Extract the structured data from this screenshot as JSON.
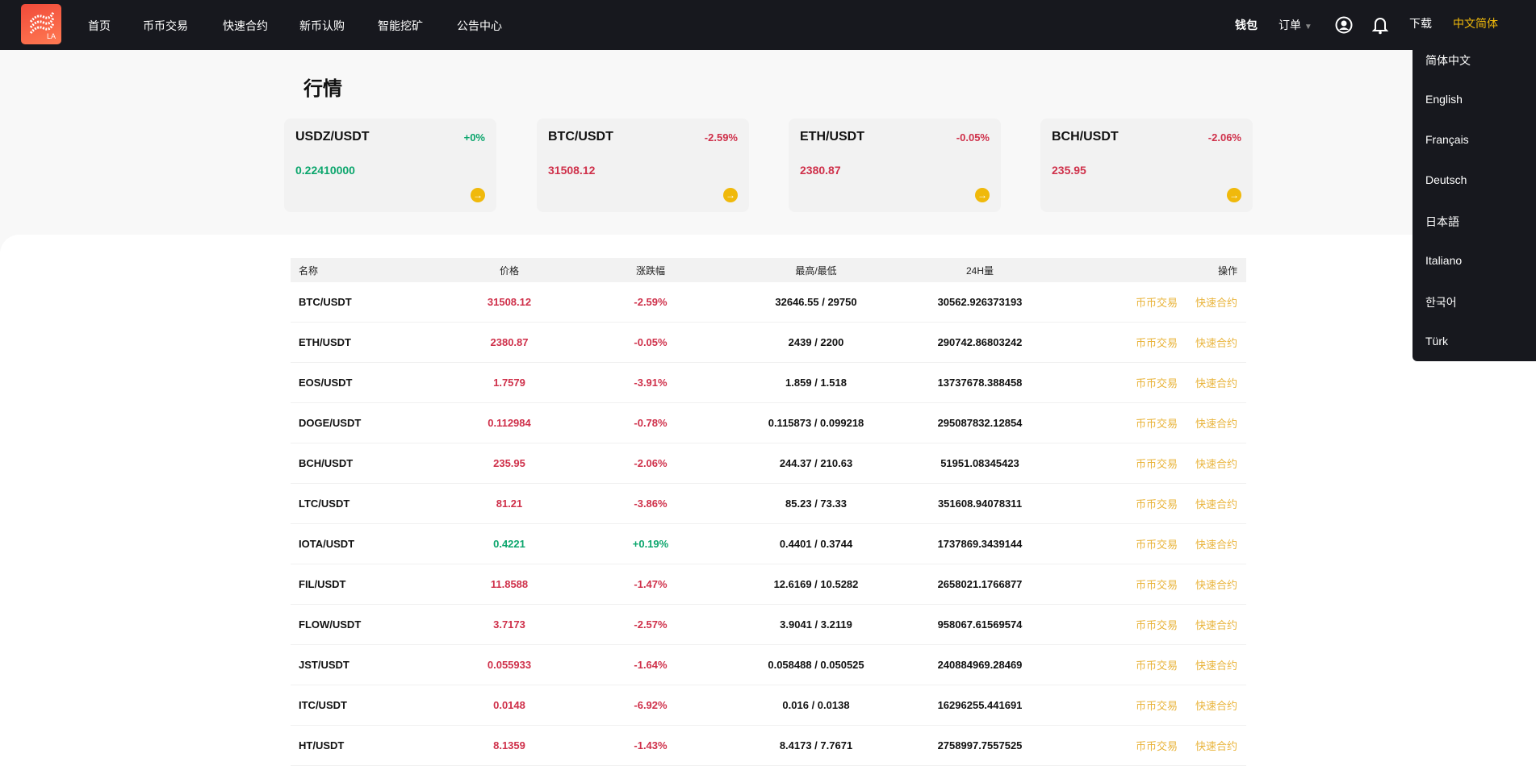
{
  "nav": {
    "logo_text": "LA",
    "items": [
      "首页",
      "币币交易",
      "快速合约",
      "新币认购",
      "智能挖矿",
      "公告中心"
    ],
    "wallet": "钱包",
    "orders": "订单",
    "download": "下载",
    "language": "中文简体"
  },
  "lang_menu": [
    "简体中文",
    "English",
    "Français",
    "Deutsch",
    "日本語",
    "Italiano",
    "한국어",
    "Türk"
  ],
  "page_title": "行情",
  "colors": {
    "up": "#0ca66d",
    "down": "#cf304a",
    "accent": "#f0b90b",
    "link": "#e9b43b",
    "nav_bg": "#17181e"
  },
  "cards": [
    {
      "pair": "USDZ/USDT",
      "change": "+0%",
      "price": "0.22410000",
      "trend": "up"
    },
    {
      "pair": "BTC/USDT",
      "change": "-2.59%",
      "price": "31508.12",
      "trend": "down"
    },
    {
      "pair": "ETH/USDT",
      "change": "-0.05%",
      "price": "2380.87",
      "trend": "down"
    },
    {
      "pair": "BCH/USDT",
      "change": "-2.06%",
      "price": "235.95",
      "trend": "down"
    }
  ],
  "table": {
    "headers": [
      "名称",
      "价格",
      "涨跌幅",
      "最高/最低",
      "24H量",
      "操作"
    ],
    "action_spot": "币币交易",
    "action_contract": "快速合约",
    "rows": [
      {
        "pair": "BTC/USDT",
        "price": "31508.12",
        "change": "-2.59%",
        "highlow": "32646.55 / 29750",
        "volume": "30562.926373193",
        "trend": "down"
      },
      {
        "pair": "ETH/USDT",
        "price": "2380.87",
        "change": "-0.05%",
        "highlow": "2439 / 2200",
        "volume": "290742.86803242",
        "trend": "down"
      },
      {
        "pair": "EOS/USDT",
        "price": "1.7579",
        "change": "-3.91%",
        "highlow": "1.859 / 1.518",
        "volume": "13737678.388458",
        "trend": "down"
      },
      {
        "pair": "DOGE/USDT",
        "price": "0.112984",
        "change": "-0.78%",
        "highlow": "0.115873 / 0.099218",
        "volume": "295087832.12854",
        "trend": "down"
      },
      {
        "pair": "BCH/USDT",
        "price": "235.95",
        "change": "-2.06%",
        "highlow": "244.37 / 210.63",
        "volume": "51951.08345423",
        "trend": "down"
      },
      {
        "pair": "LTC/USDT",
        "price": "81.21",
        "change": "-3.86%",
        "highlow": "85.23 / 73.33",
        "volume": "351608.94078311",
        "trend": "down"
      },
      {
        "pair": "IOTA/USDT",
        "price": "0.4221",
        "change": "+0.19%",
        "highlow": "0.4401 / 0.3744",
        "volume": "1737869.3439144",
        "trend": "up"
      },
      {
        "pair": "FIL/USDT",
        "price": "11.8588",
        "change": "-1.47%",
        "highlow": "12.6169 / 10.5282",
        "volume": "2658021.1766877",
        "trend": "down"
      },
      {
        "pair": "FLOW/USDT",
        "price": "3.7173",
        "change": "-2.57%",
        "highlow": "3.9041 / 3.2119",
        "volume": "958067.61569574",
        "trend": "down"
      },
      {
        "pair": "JST/USDT",
        "price": "0.055933",
        "change": "-1.64%",
        "highlow": "0.058488 / 0.050525",
        "volume": "240884969.28469",
        "trend": "down"
      },
      {
        "pair": "ITC/USDT",
        "price": "0.0148",
        "change": "-6.92%",
        "highlow": "0.016 / 0.0138",
        "volume": "16296255.441691",
        "trend": "down"
      },
      {
        "pair": "HT/USDT",
        "price": "8.1359",
        "change": "-1.43%",
        "highlow": "8.4173 / 7.7671",
        "volume": "2758997.7557525",
        "trend": "down"
      }
    ]
  }
}
